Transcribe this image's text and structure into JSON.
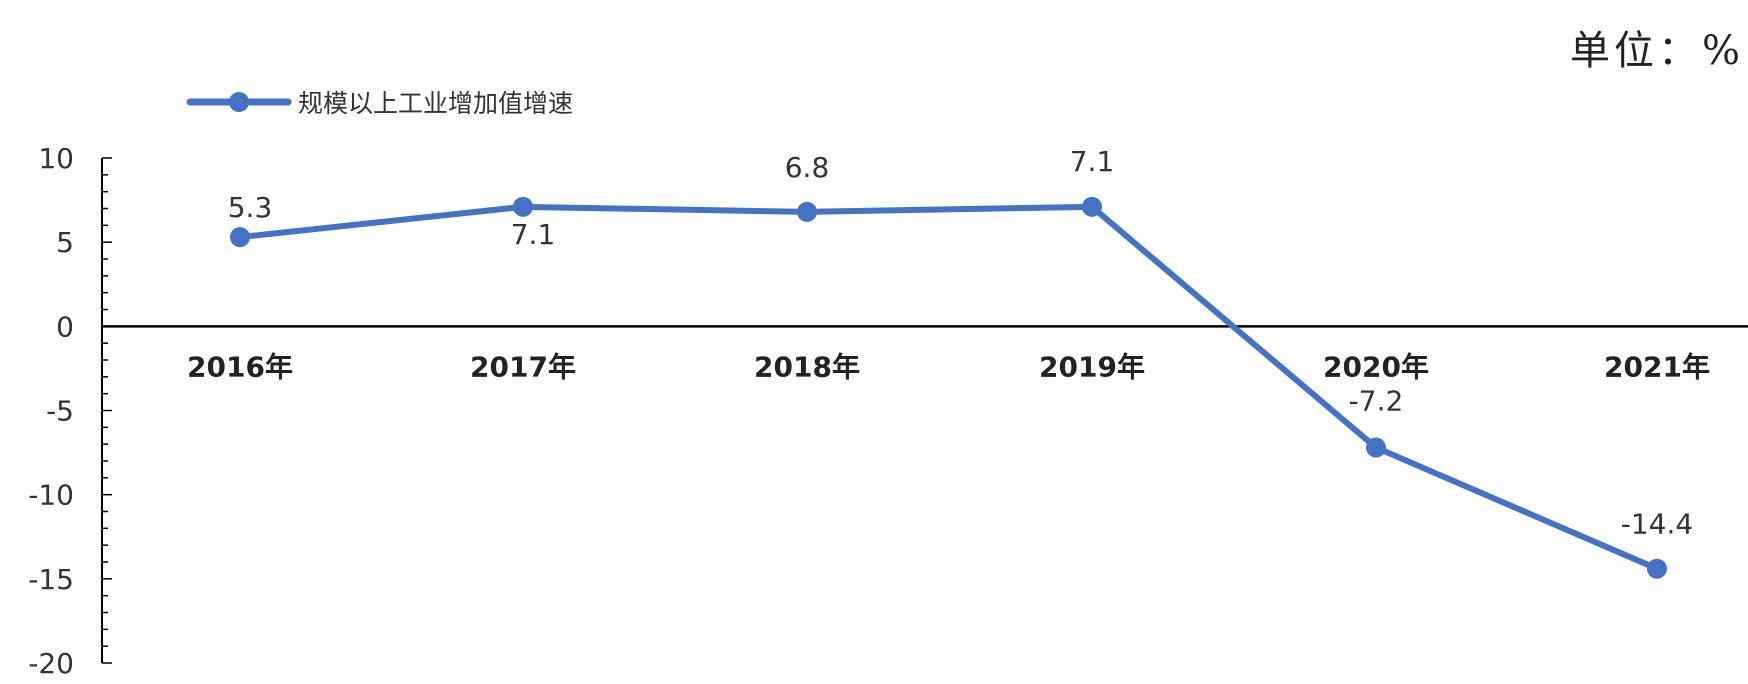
{
  "unit_label": "单位：%",
  "chart_data": {
    "type": "line",
    "categories": [
      "2016年",
      "2017年",
      "2018年",
      "2019年",
      "2020年",
      "2021年"
    ],
    "series": [
      {
        "name": "规模以上工业增加值增速",
        "values": [
          5.3,
          7.1,
          6.8,
          7.1,
          -7.2,
          -14.4
        ],
        "color": "#4472C4"
      }
    ],
    "data_labels": [
      "5.3",
      "7.1",
      "6.8",
      "7.1",
      "-7.2",
      "-14.4"
    ],
    "y_ticks": [
      10,
      5,
      0,
      -5,
      -10,
      -15,
      -20
    ],
    "ylim": [
      -20,
      10
    ],
    "grid": false,
    "legend_position": "top-left"
  }
}
